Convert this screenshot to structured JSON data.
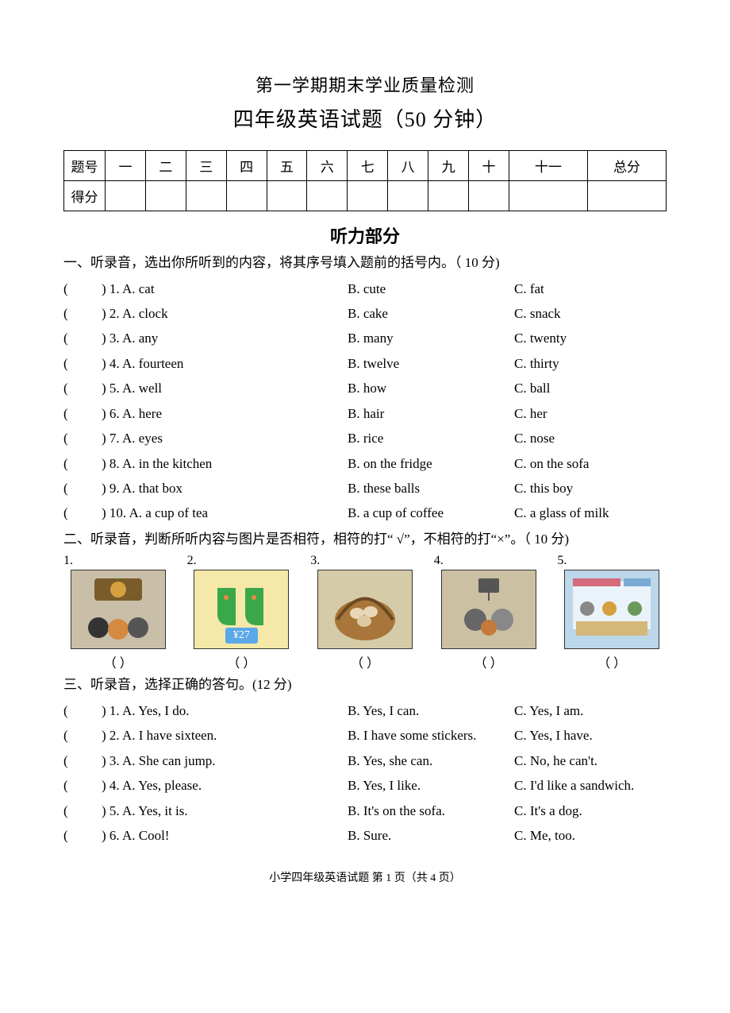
{
  "title1": "第一学期期末学业质量检测",
  "title2": "四年级英语试题（50 分钟）",
  "scoreTable": {
    "rowLabels": [
      "题号",
      "得分"
    ],
    "columns": [
      "一",
      "二",
      "三",
      "四",
      "五",
      "六",
      "七",
      "八",
      "九",
      "十",
      "十一",
      "总分"
    ]
  },
  "listeningHeader": "听力部分",
  "sec1": {
    "instruction": "一、听录音，选出你所听到的内容，将其序号填入题前的括号内。（ 10 分)",
    "rows": [
      {
        "n": "1",
        "a": "A. cat",
        "b": "B. cute",
        "c": "C. fat"
      },
      {
        "n": "2",
        "a": "A. clock",
        "b": "B. cake",
        "c": "C. snack"
      },
      {
        "n": "3",
        "a": "A. any",
        "b": "B. many",
        "c": "C. twenty"
      },
      {
        "n": "4",
        "a": "A. fourteen",
        "b": "B. twelve",
        "c": "C. thirty"
      },
      {
        "n": "5",
        "a": "A. well",
        "b": "B. how",
        "c": "C. ball"
      },
      {
        "n": "6",
        "a": "A. here",
        "b": "B. hair",
        "c": "C. her"
      },
      {
        "n": "7",
        "a": "A. eyes",
        "b": "B. rice",
        "c": "C. nose"
      },
      {
        "n": "8",
        "a": "A. in the kitchen",
        "b": "B. on the fridge",
        "c": "C. on the sofa"
      },
      {
        "n": "9",
        "a": "A. that box",
        "b": "B. these balls",
        "c": "C. this boy"
      },
      {
        "n": "10",
        "a": "A. a cup of tea",
        "b": "B. a cup of coffee",
        "c": "C. a glass of milk"
      }
    ]
  },
  "sec2": {
    "instruction": "二、听录音，判断所听内容与图片是否相符，相符的打“ √”，不相符的打“×”。（ 10 分)",
    "items": [
      {
        "n": "1.",
        "imgClass": "img-tiger",
        "alt": "tiger-kids",
        "caption": "（       ）"
      },
      {
        "n": "2.",
        "imgClass": "img-socks",
        "alt": "socks-price",
        "caption": "（       ）",
        "price": "¥27"
      },
      {
        "n": "3.",
        "imgClass": "img-basket",
        "alt": "egg-basket",
        "caption": "（       ）"
      },
      {
        "n": "4.",
        "imgClass": "img-ball",
        "alt": "basketball-boys",
        "caption": "（       ）"
      },
      {
        "n": "5.",
        "imgClass": "img-shop",
        "alt": "food-counter",
        "caption": "（       ）"
      }
    ]
  },
  "sec3": {
    "instruction": "三、听录音，选择正确的答句。(12 分)",
    "rows": [
      {
        "n": "1",
        "a": "A. Yes, I do.",
        "b": "B. Yes, I can.",
        "c": "C. Yes, I am."
      },
      {
        "n": "2",
        "a": "A. I have sixteen.",
        "b": "B. I have some stickers.",
        "c": "C. Yes, I have."
      },
      {
        "n": "3",
        "a": "A. She can jump.",
        "b": "B. Yes, she can.",
        "c": "C. No, he can't."
      },
      {
        "n": "4",
        "a": "A. Yes, please.",
        "b": "B. Yes, I like.",
        "c": "C. I'd like a sandwich."
      },
      {
        "n": "5",
        "a": "A. Yes, it is.",
        "b": "B. It's on the sofa.",
        "c": "C.   It's a dog."
      },
      {
        "n": "6",
        "a": "A. Cool!",
        "b": "B. Sure.",
        "c": "C. Me, too."
      }
    ]
  },
  "footer": "小学四年级英语试题   第 1 页（共 4 页）"
}
